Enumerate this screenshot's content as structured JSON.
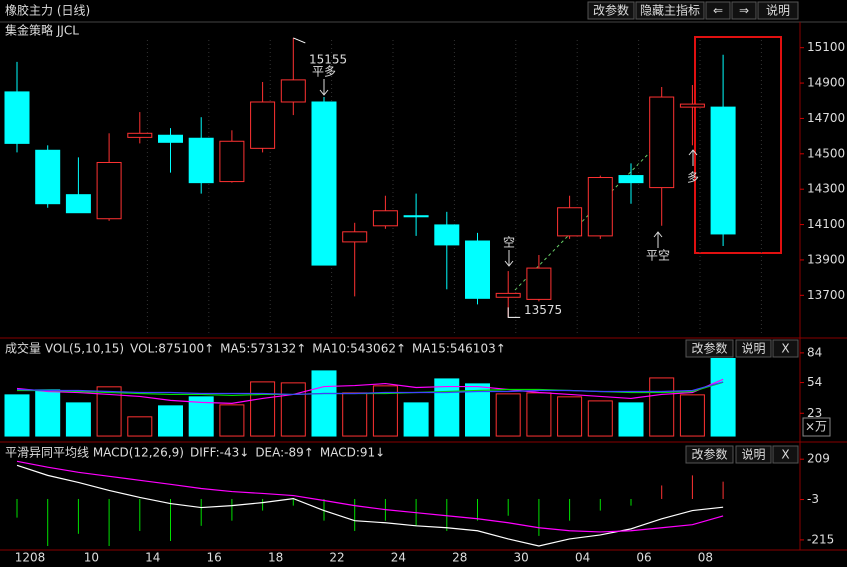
{
  "chart_data": [
    {
      "type": "candlestick",
      "title": "橡胶主力 (日线)",
      "subtitle": "集金策略 JJCL",
      "buttons": [
        "改参数",
        "隐藏主指标",
        "⇐",
        "⇒",
        "说明"
      ],
      "categories": [
        "1208",
        null,
        "10",
        null,
        "14",
        null,
        "16",
        null,
        "18",
        null,
        "22",
        null,
        "24",
        null,
        "28",
        null,
        "30",
        null,
        "04",
        null,
        "06",
        null,
        "08",
        null
      ],
      "open": [
        14850,
        14520,
        14269,
        14133,
        14593,
        14605,
        14588,
        14343,
        14531,
        14793,
        14793,
        14002,
        14093,
        14150,
        14098,
        14007,
        13689,
        13677,
        14036,
        14036,
        14377,
        14309,
        14764,
        14764
      ],
      "high": [
        15020,
        14548,
        14480,
        14616,
        14736,
        14645,
        14707,
        14633,
        14906,
        15155,
        14821,
        14110,
        14263,
        14275,
        14172,
        14053,
        13837,
        13928,
        14263,
        14377,
        14446,
        14878,
        14889,
        15060
      ],
      "low": [
        14508,
        14195,
        14167,
        14121,
        14559,
        14394,
        14275,
        14337,
        14508,
        14719,
        13871,
        13694,
        14076,
        14036,
        13734,
        13649,
        13575,
        13666,
        14019,
        14019,
        14218,
        14093,
        14548,
        13979
      ],
      "close": [
        14559,
        14218,
        14167,
        14451,
        14616,
        14565,
        14337,
        14571,
        14793,
        14918,
        13871,
        14059,
        14178,
        14144,
        13985,
        13683,
        13711,
        13854,
        14195,
        14366,
        14337,
        14821,
        14781,
        14047
      ],
      "up_color": "#ff3232",
      "down_color": "#00ffff",
      "ylim": [
        13470,
        15200
      ],
      "yticks": [
        13700,
        13900,
        14100,
        14300,
        14500,
        14700,
        14900,
        15100
      ],
      "annotations": [
        {
          "text": "平多",
          "color": "#00e000"
        },
        {
          "text": "空",
          "color": "#00e000"
        },
        {
          "text": "平空",
          "color": "#ff3232"
        },
        {
          "text": "多",
          "color": "#ff3232"
        }
      ]
    },
    {
      "type": "volume",
      "header": [
        {
          "label": "成交量 VOL(5,10,15)",
          "color": "#dddddd"
        },
        {
          "label": "VOL:875100↑",
          "color": "#dddddd"
        }
      ],
      "buttons": [
        "改参数",
        "说明",
        "X"
      ],
      "unit": "×万",
      "values": [
        41.6,
        46.6,
        33.5,
        49.7,
        19.4,
        30.5,
        39.6,
        31.5,
        54.7,
        53.7,
        65.8,
        43.6,
        50.7,
        33.5,
        57.7,
        52.7,
        42.6,
        43.6,
        39.6,
        35.5,
        33.5,
        58.7,
        41.6,
        87.51
      ],
      "series": [
        {
          "label": "MA5:573132↑",
          "color": "#ff00ff",
          "values": [
            48,
            45,
            44,
            42,
            40,
            36,
            34,
            33,
            38,
            42,
            50,
            51,
            53,
            49,
            50,
            50,
            47,
            44,
            42,
            40,
            38,
            42,
            44,
            57.31
          ]
        },
        {
          "label": "MA10:543062↑",
          "color": "#00e000",
          "values": [
            46,
            46,
            45,
            44,
            43,
            42,
            42,
            41,
            42,
            42,
            43,
            43,
            43,
            44,
            45,
            46,
            47,
            47,
            46,
            45,
            44,
            44,
            45,
            54.31
          ]
        },
        {
          "label": "MA15:546103↑",
          "color": "#4040ff",
          "values": [
            47,
            46,
            46,
            45,
            44,
            44,
            43,
            43,
            43,
            42,
            43,
            43,
            44,
            44,
            44,
            45,
            45,
            46,
            46,
            45,
            45,
            45,
            46,
            54.61
          ]
        }
      ],
      "ylim": [
        -4,
        96
      ],
      "yticks": [
        23,
        54,
        84
      ]
    },
    {
      "type": "macd",
      "header": [
        {
          "label": "平滑异同平均线 MACD(12,26,9)",
          "color": "#dddddd"
        }
      ],
      "buttons": [
        "改参数",
        "说明",
        "X"
      ],
      "values": [
        -98,
        -247,
        -183,
        -247,
        -168,
        -221,
        -141,
        -114,
        -61,
        -35,
        -114,
        -168,
        -114,
        -141,
        -168,
        -114,
        -88,
        -194,
        -114,
        -61,
        -35,
        71,
        124,
        91
      ],
      "series": [
        {
          "label": "DIFF:-43↓",
          "color": "#ffffff",
          "values": [
            177,
            124,
            87,
            45,
            8,
            -24,
            -45,
            -35,
            -19,
            2,
            -61,
            -114,
            -125,
            -141,
            -151,
            -167,
            -210,
            -247,
            -210,
            -189,
            -157,
            -104,
            -61,
            -43
          ]
        },
        {
          "label": "DEA:-89↑",
          "color": "#ff00ff",
          "values": [
            198,
            167,
            140,
            119,
            98,
            77,
            55,
            39,
            29,
            18,
            -8,
            -35,
            -56,
            -72,
            -88,
            -104,
            -125,
            -151,
            -167,
            -173,
            -167,
            -151,
            -135,
            -89
          ]
        }
      ],
      "bar_label": "MACD:91↓",
      "bar_label_color": "#00e000",
      "up_color": "#ff3232",
      "down_color": "#00e000",
      "ylim": [
        -268,
        273
      ],
      "yticks": [
        -215,
        -3,
        209
      ]
    }
  ]
}
